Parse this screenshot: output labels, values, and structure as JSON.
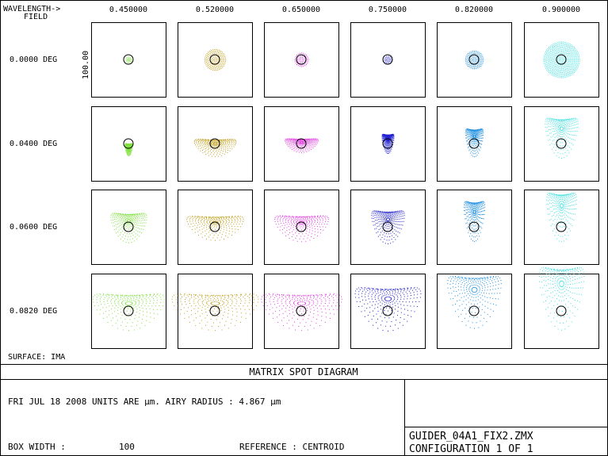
{
  "header": {
    "wavelength_label": "WAVELENGTH->",
    "field_label": "FIELD"
  },
  "surface_label": "SURFACE: IMA",
  "scale_label": "100.00",
  "title": "MATRIX SPOT DIAGRAM",
  "info": {
    "line1": "FRI JUL 18 2008  UNITS ARE µm.  AIRY RADIUS : 4.867 µm",
    "box_width_label": "BOX WIDTH  :",
    "box_width_value": "100",
    "reference": "REFERENCE  : CENTROID",
    "filename": "GUIDER_04A1_FIX2.ZMX",
    "configuration": "CONFIGURATION 1 OF 1"
  },
  "chart_data": {
    "type": "scatter",
    "subtype": "spot-diagram-matrix",
    "title": "MATRIX SPOT DIAGRAM",
    "columns_label": "WAVELENGTH",
    "rows_label": "FIELD",
    "wavelengths": [
      "0.450000",
      "0.520000",
      "0.650000",
      "0.750000",
      "0.820000",
      "0.900000"
    ],
    "fields": [
      "0.0000 DEG",
      "0.0400 DEG",
      "0.0600 DEG",
      "0.0820 DEG"
    ],
    "wavelength_colors": [
      "#80e040",
      "#c0a020",
      "#e040e0",
      "#2020d0",
      "#2090e0",
      "#40e0e0"
    ],
    "box_width": 100,
    "units": "µm",
    "airy_radius": 4.867,
    "spots": [
      [
        {
          "shape": "disk",
          "rx": 4,
          "ry": 4,
          "cx": 0,
          "cy": 0
        },
        {
          "shape": "disk",
          "rx": 14,
          "ry": 14,
          "cx": 0,
          "cy": 0
        },
        {
          "shape": "disk",
          "rx": 9,
          "ry": 9,
          "cx": 0,
          "cy": 0
        },
        {
          "shape": "disk",
          "rx": 5,
          "ry": 5,
          "cx": 0,
          "cy": 0
        },
        {
          "shape": "disk",
          "rx": 12,
          "ry": 12,
          "cx": 0,
          "cy": 0
        },
        {
          "shape": "disk",
          "rx": 24,
          "ry": 24,
          "cx": 0,
          "cy": 0
        }
      ],
      [
        {
          "shape": "fan",
          "rx": 5,
          "ry": 14,
          "cx": 0,
          "cy": 4
        },
        {
          "shape": "fan",
          "rx": 28,
          "ry": 20,
          "cx": 0,
          "cy": 0
        },
        {
          "shape": "fan",
          "rx": 22,
          "ry": 16,
          "cx": 0,
          "cy": -2
        },
        {
          "shape": "fan",
          "rx": 8,
          "ry": 22,
          "cx": 0,
          "cy": -6
        },
        {
          "shape": "fan",
          "rx": 12,
          "ry": 32,
          "cx": 0,
          "cy": -10
        },
        {
          "shape": "fan",
          "rx": 22,
          "ry": 46,
          "cx": 0,
          "cy": -20
        }
      ],
      [
        {
          "shape": "fan",
          "rx": 24,
          "ry": 34,
          "cx": 0,
          "cy": -8
        },
        {
          "shape": "fan",
          "rx": 38,
          "ry": 28,
          "cx": 0,
          "cy": -6
        },
        {
          "shape": "fan",
          "rx": 36,
          "ry": 30,
          "cx": 0,
          "cy": -6
        },
        {
          "shape": "fan",
          "rx": 22,
          "ry": 38,
          "cx": 0,
          "cy": -10
        },
        {
          "shape": "fan",
          "rx": 14,
          "ry": 46,
          "cx": 0,
          "cy": -20
        },
        {
          "shape": "fan",
          "rx": 20,
          "ry": 56,
          "cx": 0,
          "cy": -28
        }
      ],
      [
        {
          "shape": "fan",
          "rx": 48,
          "ry": 42,
          "cx": 0,
          "cy": -10
        },
        {
          "shape": "fan",
          "rx": 58,
          "ry": 42,
          "cx": 0,
          "cy": -10
        },
        {
          "shape": "fan",
          "rx": 54,
          "ry": 42,
          "cx": 0,
          "cy": -10
        },
        {
          "shape": "fan",
          "rx": 44,
          "ry": 50,
          "cx": 0,
          "cy": -16
        },
        {
          "shape": "fan",
          "rx": 36,
          "ry": 60,
          "cx": 0,
          "cy": -28
        },
        {
          "shape": "fan",
          "rx": 30,
          "ry": 72,
          "cx": 0,
          "cy": -36
        }
      ]
    ]
  }
}
